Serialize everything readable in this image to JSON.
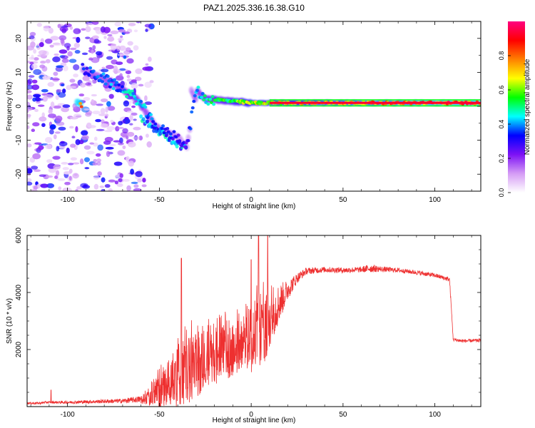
{
  "title": "PAZ1.2025.336.16.38.G10",
  "chart_data": [
    {
      "type": "heatmap",
      "xlabel": "Height of straight line (km)",
      "ylabel": "Frequency (Hz)",
      "xlim": [
        -122,
        125
      ],
      "ylim": [
        -25,
        25
      ],
      "xticks": [
        -100,
        -50,
        0,
        50,
        100
      ],
      "yticks": [
        -20,
        -10,
        0,
        10,
        20
      ],
      "colorbar": {
        "label": "Normalized spectral amplitude",
        "range": [
          0,
          1
        ],
        "ticks": [
          0.0,
          0.2,
          0.4,
          0.6,
          0.8
        ],
        "tick_labels": [
          "0.0",
          "0.2",
          "0.4",
          "0.6",
          "0.8"
        ],
        "colors": [
          "#ffffff",
          "#d59cf5",
          "#7d12f5",
          "#0000ff",
          "#00ffff",
          "#00ff00",
          "#ffff00",
          "#ff8000",
          "#ff0000",
          "#ff0080"
        ]
      },
      "ridge": {
        "description_x": [
          -92,
          -80,
          -70,
          -62,
          -52,
          -45,
          -40,
          -35,
          -30,
          -25,
          -20,
          0,
          125
        ],
        "freq_hz": [
          11,
          8,
          5,
          2,
          -6,
          -8,
          -9,
          -12,
          5,
          2,
          2,
          1,
          1
        ],
        "amplitude": [
          0.35,
          0.4,
          0.45,
          0.5,
          0.4,
          0.35,
          0.3,
          0.3,
          0.45,
          0.5,
          0.55,
          0.7,
          0.95
        ]
      }
    },
    {
      "type": "line",
      "xlabel": "Height of straight line (km)",
      "ylabel": "SNR (10 * v/v)",
      "xlim": [
        -122,
        125
      ],
      "ylim": [
        0,
        6000
      ],
      "xticks": [
        -100,
        -50,
        0,
        50,
        100
      ],
      "yticks": [
        2000,
        4000,
        6000
      ],
      "color": "#ee3030",
      "envelope": {
        "x": [
          -122,
          -115,
          -112,
          -100,
          -70,
          -60,
          -55,
          -50,
          -45,
          -40,
          -38,
          -35,
          -30,
          -25,
          -20,
          -15,
          -10,
          -5,
          0,
          3,
          5,
          8,
          10,
          15,
          20,
          25,
          30,
          40,
          50,
          60,
          65,
          70,
          80,
          90,
          100,
          108,
          110,
          115,
          125
        ],
        "mean": [
          120,
          120,
          150,
          150,
          200,
          260,
          450,
          700,
          1050,
          1400,
          1700,
          1600,
          1800,
          2000,
          2100,
          2150,
          2250,
          2500,
          2700,
          3300,
          3000,
          3200,
          3200,
          3600,
          4100,
          4500,
          4750,
          4800,
          4780,
          4800,
          4850,
          4820,
          4780,
          4700,
          4600,
          4450,
          2350,
          2300,
          2320
        ],
        "noise": [
          40,
          40,
          40,
          50,
          80,
          120,
          300,
          550,
          800,
          1000,
          1200,
          1100,
          1100,
          1000,
          950,
          900,
          850,
          850,
          1100,
          1300,
          1300,
          1200,
          1100,
          700,
          350,
          180,
          120,
          100,
          100,
          100,
          150,
          100,
          80,
          80,
          80,
          80,
          60,
          60,
          60
        ]
      },
      "peaks": [
        {
          "x": -109,
          "y": 580
        },
        {
          "x": -38,
          "y": 5200
        },
        {
          "x": 0,
          "y": 5150
        },
        {
          "x": 4,
          "y": 6000
        },
        {
          "x": 9,
          "y": 6000
        }
      ]
    }
  ]
}
